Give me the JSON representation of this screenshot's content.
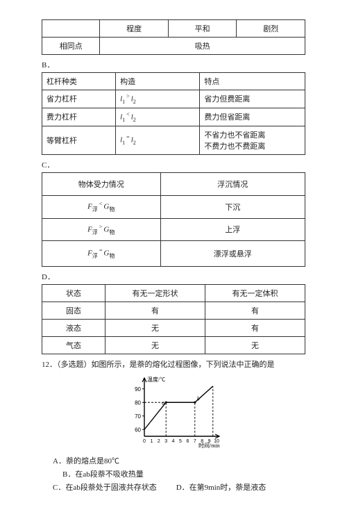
{
  "tableA": {
    "row1": {
      "c1": "",
      "c2": "程度",
      "c3": "平和",
      "c4": "剧烈"
    },
    "row2": {
      "c1": "相同点",
      "c2": "吸热"
    }
  },
  "labelB": "B．",
  "tableB": {
    "header": {
      "c1": "杠杆种类",
      "c2": "构造",
      "c3": "特点"
    },
    "r1": {
      "c1": "省力杠杆",
      "c2_l1": "l",
      "c2_sub1": "1",
      "c2_mid": " > ",
      "c2_l2": "l",
      "c2_sub2": "2",
      "c3": "省力但费距离"
    },
    "r2": {
      "c1": "费力杠杆",
      "c2_l1": "l",
      "c2_sub1": "1",
      "c2_mid": " < ",
      "c2_l2": "l",
      "c2_sub2": "2",
      "c3": "费力但省距离"
    },
    "r3": {
      "c1": "等臂杠杆",
      "c2_l1": "l",
      "c2_sub1": "1",
      "c2_mid": " = ",
      "c2_l2": "l",
      "c2_sub2": "2",
      "c3a": "不省力也不省距离",
      "c3b": "不费力也不费距离"
    }
  },
  "labelC": "C．",
  "tableC": {
    "header": {
      "c1": "物体受力情况",
      "c2": "浮沉情况"
    },
    "r1": {
      "f": "F",
      "fsub": "浮",
      "op": " < ",
      "g": "G",
      "gsub": "物",
      "c2": "下沉"
    },
    "r2": {
      "f": "F",
      "fsub": "浮",
      "op": " > ",
      "g": "G",
      "gsub": "物",
      "c2": "上浮"
    },
    "r3": {
      "f": "F",
      "fsub": "浮",
      "op": " = ",
      "g": "G",
      "gsub": "物",
      "c2": "漂浮或悬浮"
    }
  },
  "labelD": "D．",
  "tableD": {
    "header": {
      "c1": "状态",
      "c2": "有无一定形状",
      "c3": "有无一定体积"
    },
    "r1": {
      "c1": "固态",
      "c2": "有",
      "c3": "有"
    },
    "r2": {
      "c1": "液态",
      "c2": "无",
      "c3": "有"
    },
    "r3": {
      "c1": "气态",
      "c2": "无",
      "c3": "无"
    }
  },
  "q12": {
    "stem": "12．（多选题）如图所示，是萘的熔化过程图像，下列说法中正确的是",
    "optA": "A．萘的熔点是80℃",
    "optB": "B．在ab段萘不吸收热量",
    "optC": "C．在ab段萘处于固液共存状态",
    "optD": "D．在第9min时，萘是液态"
  },
  "chart": {
    "ylabel": "温度/℃",
    "xlabel": "时间/min",
    "yticks": [
      "60",
      "70",
      "80",
      "90"
    ],
    "xticks": [
      "0",
      "1",
      "2",
      "3",
      "4",
      "5",
      "6",
      "7",
      "8",
      "9",
      "10"
    ],
    "pt_a": "a",
    "pt_b": "b",
    "background": "#ffffff",
    "axis_color": "#000000",
    "line_color": "#000000",
    "line_width": 1.4,
    "dash": "3,2",
    "fontsize": 8,
    "xlim": [
      0,
      10
    ],
    "ylim": [
      55,
      95
    ],
    "series": {
      "points": [
        [
          0,
          60
        ],
        [
          3,
          80
        ],
        [
          7,
          80
        ],
        [
          9.5,
          92
        ]
      ]
    },
    "guides": [
      {
        "from": [
          3,
          55
        ],
        "to": [
          3,
          80
        ]
      },
      {
        "from": [
          7,
          55
        ],
        "to": [
          7,
          80
        ]
      },
      {
        "from": [
          9.5,
          55
        ],
        "to": [
          9.5,
          92
        ]
      },
      {
        "from": [
          0,
          80
        ],
        "to": [
          3,
          80
        ]
      }
    ]
  }
}
